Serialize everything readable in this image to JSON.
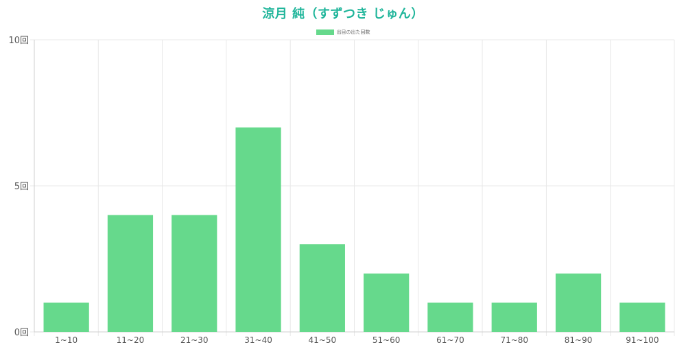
{
  "chart_data": {
    "type": "bar",
    "title": "涼月 純（すずつき じゅん）",
    "legend": {
      "label": "出目の出た回数",
      "placement": "top-center"
    },
    "categories": [
      "1~10",
      "11~20",
      "21~30",
      "31~40",
      "41~50",
      "51~60",
      "61~70",
      "71~80",
      "81~90",
      "91~100"
    ],
    "series": [
      {
        "name": "出目の出た回数",
        "values": [
          1,
          4,
          4,
          7,
          3,
          2,
          1,
          1,
          2,
          1
        ]
      }
    ],
    "ylim": [
      0,
      10
    ],
    "yticks": [
      "0回",
      "5回",
      "10回"
    ],
    "ytick_values": [
      0,
      5,
      10
    ],
    "grid": true,
    "colors": {
      "bar": "#66d98c",
      "title": "#1fb59a",
      "grid": "#e8e8e8"
    }
  }
}
